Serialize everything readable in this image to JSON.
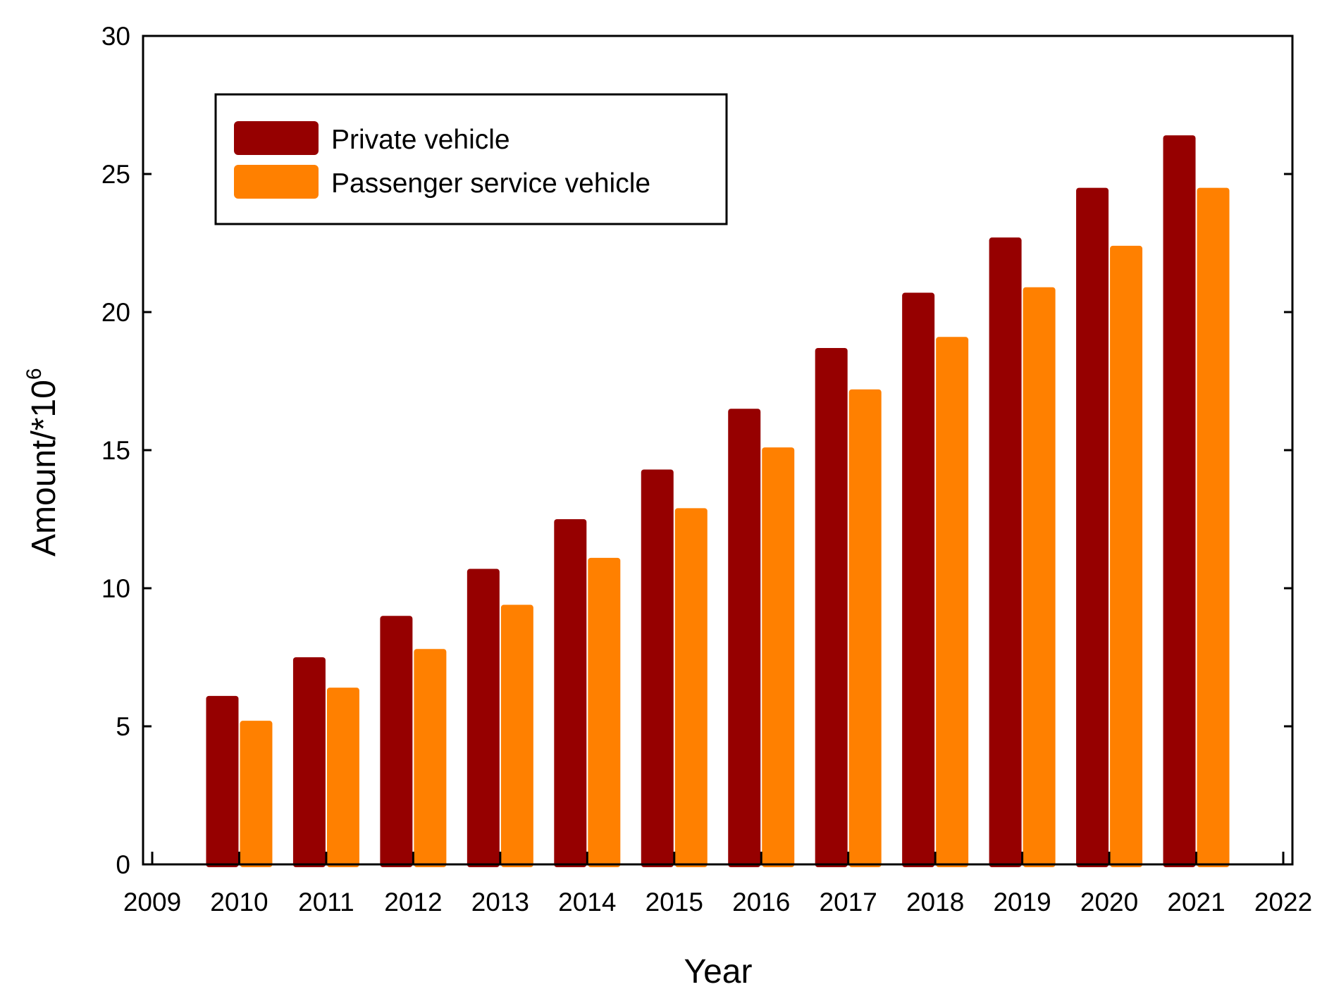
{
  "chart_data": {
    "type": "bar",
    "title": "",
    "xlabel": "Year",
    "ylabel": "Amount/*10",
    "ylabel_superscript": "6",
    "categories": [
      "2010",
      "2011",
      "2012",
      "2013",
      "2014",
      "2015",
      "2016",
      "2017",
      "2018",
      "2019",
      "2020",
      "2021"
    ],
    "x_ticks": [
      "2009",
      "2010",
      "2011",
      "2012",
      "2013",
      "2014",
      "2015",
      "2016",
      "2017",
      "2018",
      "2019",
      "2020",
      "2021",
      "2022"
    ],
    "xlim": [
      2009,
      2022
    ],
    "ylim": [
      0,
      30
    ],
    "y_ticks": [
      "0",
      "5",
      "10",
      "15",
      "20",
      "25",
      "30"
    ],
    "grid": false,
    "legend_position": "top-left",
    "series": [
      {
        "name": "Private vehicle",
        "color": "#960000",
        "values": [
          6.1,
          7.5,
          9.0,
          10.7,
          12.5,
          14.3,
          16.5,
          18.7,
          20.7,
          22.7,
          24.5,
          26.4
        ]
      },
      {
        "name": "Passenger service vehicle",
        "color": "#FF8000",
        "values": [
          5.2,
          6.4,
          7.8,
          9.4,
          11.1,
          12.9,
          15.1,
          17.2,
          19.1,
          20.9,
          22.4,
          24.5
        ]
      }
    ]
  }
}
